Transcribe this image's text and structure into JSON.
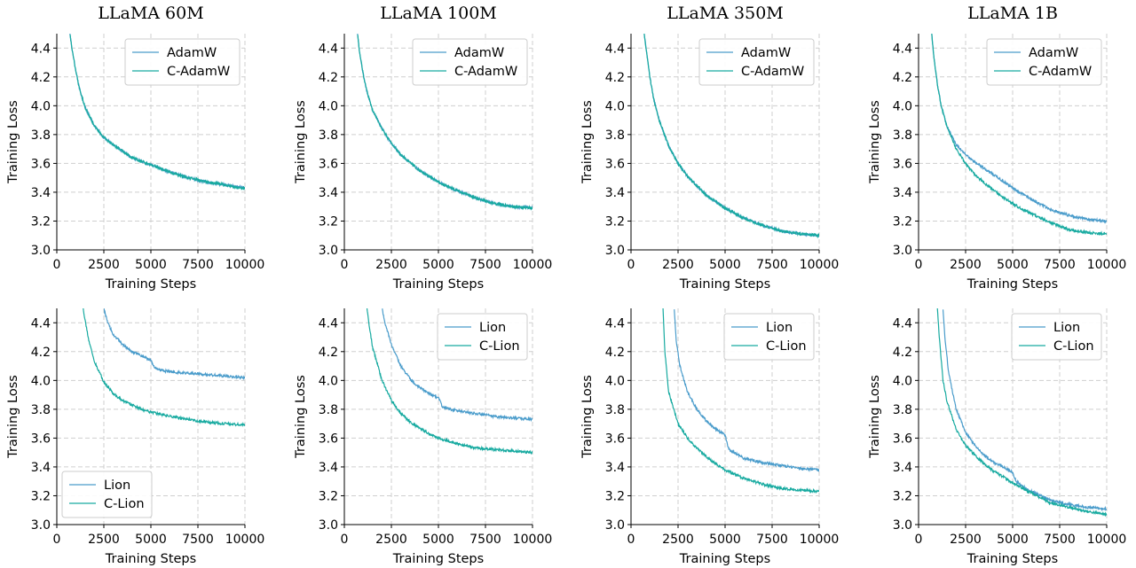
{
  "colors": {
    "adamw": "#4a9ccb",
    "c_adamw": "#17aaa0",
    "lion": "#4a9ccb",
    "c_lion": "#17aaa0",
    "grid": "#cfcfcf",
    "legend_border": "#cccccc"
  },
  "chart_data": [
    {
      "type": "line",
      "title": "LLaMA 60M",
      "xlabel": "Training Steps",
      "ylabel": "Training Loss",
      "xlim": [
        0,
        10000
      ],
      "ylim": [
        3.0,
        4.5
      ],
      "xticks": [
        0,
        2500,
        5000,
        7500,
        10000
      ],
      "yticks": [
        3.0,
        3.2,
        3.4,
        3.6,
        3.8,
        4.0,
        4.2,
        4.4
      ],
      "grid": true,
      "legend": "top-right",
      "series": [
        {
          "name": "AdamW",
          "color_key": "adamw",
          "x": [
            700,
            800,
            1000,
            1200,
            1500,
            2000,
            2500,
            3000,
            4000,
            5000,
            6000,
            7000,
            8000,
            9000,
            10000
          ],
          "y": [
            4.5,
            4.4,
            4.25,
            4.12,
            3.99,
            3.86,
            3.78,
            3.73,
            3.64,
            3.59,
            3.54,
            3.5,
            3.47,
            3.45,
            3.43
          ]
        },
        {
          "name": "C-AdamW",
          "color_key": "c_adamw",
          "x": [
            700,
            800,
            1000,
            1200,
            1500,
            2000,
            2500,
            3000,
            4000,
            5000,
            6000,
            7000,
            8000,
            9000,
            10000
          ],
          "y": [
            4.5,
            4.4,
            4.25,
            4.12,
            3.99,
            3.86,
            3.78,
            3.73,
            3.64,
            3.59,
            3.54,
            3.5,
            3.47,
            3.45,
            3.42
          ]
        }
      ]
    },
    {
      "type": "line",
      "title": "LLaMA 100M",
      "xlabel": "Training Steps",
      "ylabel": "Training Loss",
      "xlim": [
        0,
        10000
      ],
      "ylim": [
        3.0,
        4.5
      ],
      "xticks": [
        0,
        2500,
        5000,
        7500,
        10000
      ],
      "yticks": [
        3.0,
        3.2,
        3.4,
        3.6,
        3.8,
        4.0,
        4.2,
        4.4
      ],
      "grid": true,
      "legend": "top-right",
      "series": [
        {
          "name": "AdamW",
          "color_key": "adamw",
          "x": [
            700,
            800,
            1000,
            1200,
            1500,
            2000,
            2500,
            3000,
            4000,
            5000,
            6000,
            7000,
            8000,
            9000,
            10000
          ],
          "y": [
            4.5,
            4.38,
            4.22,
            4.1,
            3.97,
            3.84,
            3.74,
            3.66,
            3.55,
            3.47,
            3.41,
            3.36,
            3.32,
            3.3,
            3.29
          ]
        },
        {
          "name": "C-AdamW",
          "color_key": "c_adamw",
          "x": [
            700,
            800,
            1000,
            1200,
            1500,
            2000,
            2500,
            3000,
            4000,
            5000,
            6000,
            7000,
            8000,
            9000,
            10000
          ],
          "y": [
            4.5,
            4.38,
            4.22,
            4.1,
            3.97,
            3.84,
            3.74,
            3.66,
            3.55,
            3.47,
            3.41,
            3.36,
            3.32,
            3.3,
            3.29
          ]
        }
      ]
    },
    {
      "type": "line",
      "title": "LLaMA 350M",
      "xlabel": "Training Steps",
      "ylabel": "Training Loss",
      "xlim": [
        0,
        10000
      ],
      "ylim": [
        3.0,
        4.5
      ],
      "xticks": [
        0,
        2500,
        5000,
        7500,
        10000
      ],
      "yticks": [
        3.0,
        3.2,
        3.4,
        3.6,
        3.8,
        4.0,
        4.2,
        4.4
      ],
      "grid": true,
      "legend": "top-right",
      "series": [
        {
          "name": "AdamW",
          "color_key": "adamw",
          "x": [
            700,
            800,
            1000,
            1200,
            1500,
            2000,
            2500,
            3000,
            4000,
            5000,
            6000,
            7000,
            8000,
            9000,
            10000
          ],
          "y": [
            4.5,
            4.4,
            4.2,
            4.05,
            3.9,
            3.72,
            3.6,
            3.51,
            3.38,
            3.29,
            3.22,
            3.17,
            3.13,
            3.11,
            3.1
          ]
        },
        {
          "name": "C-AdamW",
          "color_key": "c_adamw",
          "x": [
            700,
            800,
            1000,
            1200,
            1500,
            2000,
            2500,
            3000,
            4000,
            5000,
            6000,
            7000,
            8000,
            9000,
            10000
          ],
          "y": [
            4.5,
            4.4,
            4.2,
            4.05,
            3.9,
            3.72,
            3.6,
            3.51,
            3.38,
            3.29,
            3.22,
            3.17,
            3.13,
            3.11,
            3.1
          ]
        }
      ]
    },
    {
      "type": "line",
      "title": "LLaMA 1B",
      "xlabel": "Training Steps",
      "ylabel": "Training Loss",
      "xlim": [
        0,
        10000
      ],
      "ylim": [
        3.0,
        4.5
      ],
      "xticks": [
        0,
        2500,
        5000,
        7500,
        10000
      ],
      "yticks": [
        3.0,
        3.2,
        3.4,
        3.6,
        3.8,
        4.0,
        4.2,
        4.4
      ],
      "grid": true,
      "legend": "top-right",
      "series": [
        {
          "name": "AdamW",
          "color_key": "adamw",
          "x": [
            700,
            800,
            1000,
            1200,
            1500,
            2000,
            2500,
            3000,
            4000,
            5000,
            6000,
            7000,
            8000,
            9000,
            10000
          ],
          "y": [
            4.5,
            4.35,
            4.15,
            4.0,
            3.86,
            3.73,
            3.66,
            3.61,
            3.52,
            3.43,
            3.35,
            3.28,
            3.24,
            3.21,
            3.2
          ]
        },
        {
          "name": "C-AdamW",
          "color_key": "c_adamw",
          "x": [
            700,
            800,
            1000,
            1200,
            1500,
            2000,
            2500,
            3000,
            4000,
            5000,
            6000,
            7000,
            8000,
            9000,
            10000
          ],
          "y": [
            4.5,
            4.35,
            4.15,
            4.0,
            3.86,
            3.7,
            3.6,
            3.52,
            3.41,
            3.32,
            3.25,
            3.19,
            3.14,
            3.12,
            3.11
          ]
        }
      ]
    },
    {
      "type": "line",
      "title": "",
      "xlabel": "Training Steps",
      "ylabel": "Training Loss",
      "xlim": [
        0,
        10000
      ],
      "ylim": [
        3.0,
        4.5
      ],
      "xticks": [
        0,
        2500,
        5000,
        7500,
        10000
      ],
      "yticks": [
        3.0,
        3.2,
        3.4,
        3.6,
        3.8,
        4.0,
        4.2,
        4.4
      ],
      "grid": true,
      "legend": "bottom-left",
      "series": [
        {
          "name": "Lion",
          "color_key": "lion",
          "x": [
            2500,
            2700,
            3000,
            3500,
            4000,
            4500,
            5000,
            5200,
            5600,
            6000,
            7000,
            8000,
            9000,
            10000
          ],
          "y": [
            4.5,
            4.4,
            4.32,
            4.25,
            4.2,
            4.17,
            4.14,
            4.09,
            4.07,
            4.06,
            4.05,
            4.04,
            4.03,
            4.02
          ]
        },
        {
          "name": "C-Lion",
          "color_key": "c_lion",
          "x": [
            1400,
            1500,
            1700,
            2000,
            2500,
            3000,
            3500,
            4000,
            4500,
            5000,
            6000,
            7000,
            8000,
            9000,
            10000
          ],
          "y": [
            4.5,
            4.42,
            4.28,
            4.13,
            3.99,
            3.91,
            3.86,
            3.83,
            3.8,
            3.78,
            3.75,
            3.73,
            3.71,
            3.7,
            3.69
          ]
        }
      ]
    },
    {
      "type": "line",
      "title": "",
      "xlabel": "Training Steps",
      "ylabel": "Training Loss",
      "xlim": [
        0,
        10000
      ],
      "ylim": [
        3.0,
        4.5
      ],
      "xticks": [
        0,
        2500,
        5000,
        7500,
        10000
      ],
      "yticks": [
        3.0,
        3.2,
        3.4,
        3.6,
        3.8,
        4.0,
        4.2,
        4.4
      ],
      "grid": true,
      "legend": "top-right",
      "series": [
        {
          "name": "Lion",
          "color_key": "lion",
          "x": [
            2000,
            2200,
            2500,
            3000,
            3500,
            4000,
            4500,
            5000,
            5200,
            5600,
            6000,
            7000,
            8000,
            9000,
            10000
          ],
          "y": [
            4.5,
            4.38,
            4.25,
            4.1,
            4.01,
            3.95,
            3.91,
            3.88,
            3.82,
            3.8,
            3.79,
            3.77,
            3.75,
            3.74,
            3.73
          ]
        },
        {
          "name": "C-Lion",
          "color_key": "c_lion",
          "x": [
            1200,
            1300,
            1500,
            2000,
            2500,
            3000,
            3500,
            4000,
            4500,
            5000,
            6000,
            7000,
            8000,
            9000,
            10000
          ],
          "y": [
            4.5,
            4.4,
            4.23,
            4.0,
            3.86,
            3.77,
            3.71,
            3.67,
            3.63,
            3.6,
            3.56,
            3.53,
            3.52,
            3.51,
            3.5
          ]
        }
      ]
    },
    {
      "type": "line",
      "title": "",
      "xlabel": "Training Steps",
      "ylabel": "Training Loss",
      "xlim": [
        0,
        10000
      ],
      "ylim": [
        3.0,
        4.5
      ],
      "xticks": [
        0,
        2500,
        5000,
        7500,
        10000
      ],
      "yticks": [
        3.0,
        3.2,
        3.4,
        3.6,
        3.8,
        4.0,
        4.2,
        4.4
      ],
      "grid": true,
      "legend": "top-right",
      "series": [
        {
          "name": "Lion",
          "color_key": "lion",
          "x": [
            2300,
            2400,
            2600,
            3000,
            3500,
            4000,
            4500,
            5000,
            5200,
            5600,
            6000,
            7000,
            8000,
            9000,
            10000
          ],
          "y": [
            4.5,
            4.28,
            4.1,
            3.92,
            3.8,
            3.72,
            3.66,
            3.62,
            3.52,
            3.49,
            3.46,
            3.43,
            3.41,
            3.39,
            3.38
          ]
        },
        {
          "name": "C-Lion",
          "color_key": "c_lion",
          "x": [
            1700,
            1800,
            2000,
            2500,
            3000,
            3500,
            4000,
            4500,
            5000,
            6000,
            7000,
            8000,
            9000,
            10000
          ],
          "y": [
            4.5,
            4.2,
            3.92,
            3.7,
            3.6,
            3.53,
            3.47,
            3.42,
            3.38,
            3.32,
            3.28,
            3.25,
            3.24,
            3.23
          ]
        }
      ]
    },
    {
      "type": "line",
      "title": "",
      "xlabel": "Training Steps",
      "ylabel": "Training Loss",
      "xlim": [
        0,
        10000
      ],
      "ylim": [
        3.0,
        4.5
      ],
      "xticks": [
        0,
        2500,
        5000,
        7500,
        10000
      ],
      "yticks": [
        3.0,
        3.2,
        3.4,
        3.6,
        3.8,
        4.0,
        4.2,
        4.4
      ],
      "grid": true,
      "legend": "top-right",
      "series": [
        {
          "name": "Lion",
          "color_key": "lion",
          "x": [
            1300,
            1400,
            1600,
            2000,
            2500,
            3000,
            3500,
            4000,
            4500,
            5000,
            5200,
            5600,
            6000,
            7000,
            8000,
            9000,
            10000
          ],
          "y": [
            4.5,
            4.3,
            4.05,
            3.8,
            3.64,
            3.55,
            3.48,
            3.43,
            3.4,
            3.36,
            3.3,
            3.26,
            3.23,
            3.17,
            3.14,
            3.12,
            3.11
          ]
        },
        {
          "name": "C-Lion",
          "color_key": "c_lion",
          "x": [
            1000,
            1100,
            1300,
            1500,
            2000,
            2500,
            3000,
            3500,
            4000,
            4500,
            5000,
            6000,
            7000,
            8000,
            9000,
            10000
          ],
          "y": [
            4.5,
            4.3,
            4.0,
            3.86,
            3.66,
            3.55,
            3.48,
            3.42,
            3.37,
            3.33,
            3.29,
            3.22,
            3.15,
            3.12,
            3.09,
            3.07
          ]
        }
      ]
    }
  ]
}
